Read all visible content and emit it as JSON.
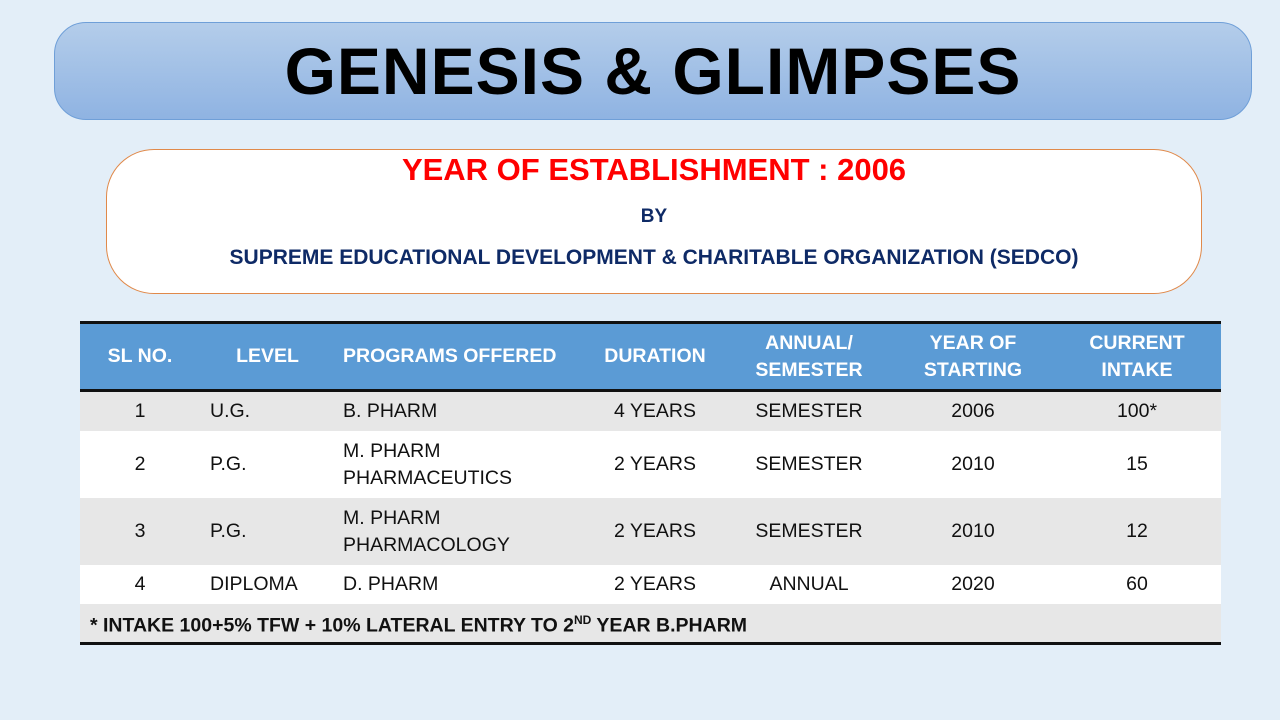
{
  "title": "GENESIS & GLIMPSES",
  "establishment": {
    "year_line": "YEAR OF ESTABLISHMENT : 2006",
    "by": "BY",
    "organization": "SUPREME EDUCATIONAL DEVELOPMENT & CHARITABLE ORGANIZATION (SEDCO)"
  },
  "colors": {
    "year_line": "#ff0000",
    "organization": "#0e2a66",
    "table_header": "#5b9bd5"
  },
  "table": {
    "headers": [
      "SL NO.",
      "LEVEL",
      "PROGRAMS OFFERED",
      "DURATION",
      [
        "ANNUAL/",
        "SEMESTER"
      ],
      [
        "YEAR OF",
        "STARTING"
      ],
      [
        "CURRENT",
        "INTAKE"
      ]
    ],
    "rows": [
      {
        "sl": "1",
        "level": "U.G.",
        "program": [
          "B. PHARM"
        ],
        "duration": "4 YEARS",
        "mode": "SEMESTER",
        "year": "2006",
        "intake": "100*"
      },
      {
        "sl": "2",
        "level": "P.G.",
        "program": [
          "M. PHARM",
          "PHARMACEUTICS"
        ],
        "duration": "2 YEARS",
        "mode": "SEMESTER",
        "year": "2010",
        "intake": "15"
      },
      {
        "sl": "3",
        "level": "P.G.",
        "program": [
          "M. PHARM",
          "PHARMACOLOGY"
        ],
        "duration": "2 YEARS",
        "mode": "SEMESTER",
        "year": "2010",
        "intake": "12"
      },
      {
        "sl": "4",
        "level": "DIPLOMA",
        "program": [
          "D. PHARM"
        ],
        "duration": "2 YEARS",
        "mode": "ANNUAL",
        "year": "2020",
        "intake": "60"
      }
    ],
    "footnote": {
      "text": "* INTAKE 100+5% TFW + 10% LATERAL ENTRY TO 2",
      "sup": "ND",
      "tail": " YEAR B.PHARM"
    }
  }
}
